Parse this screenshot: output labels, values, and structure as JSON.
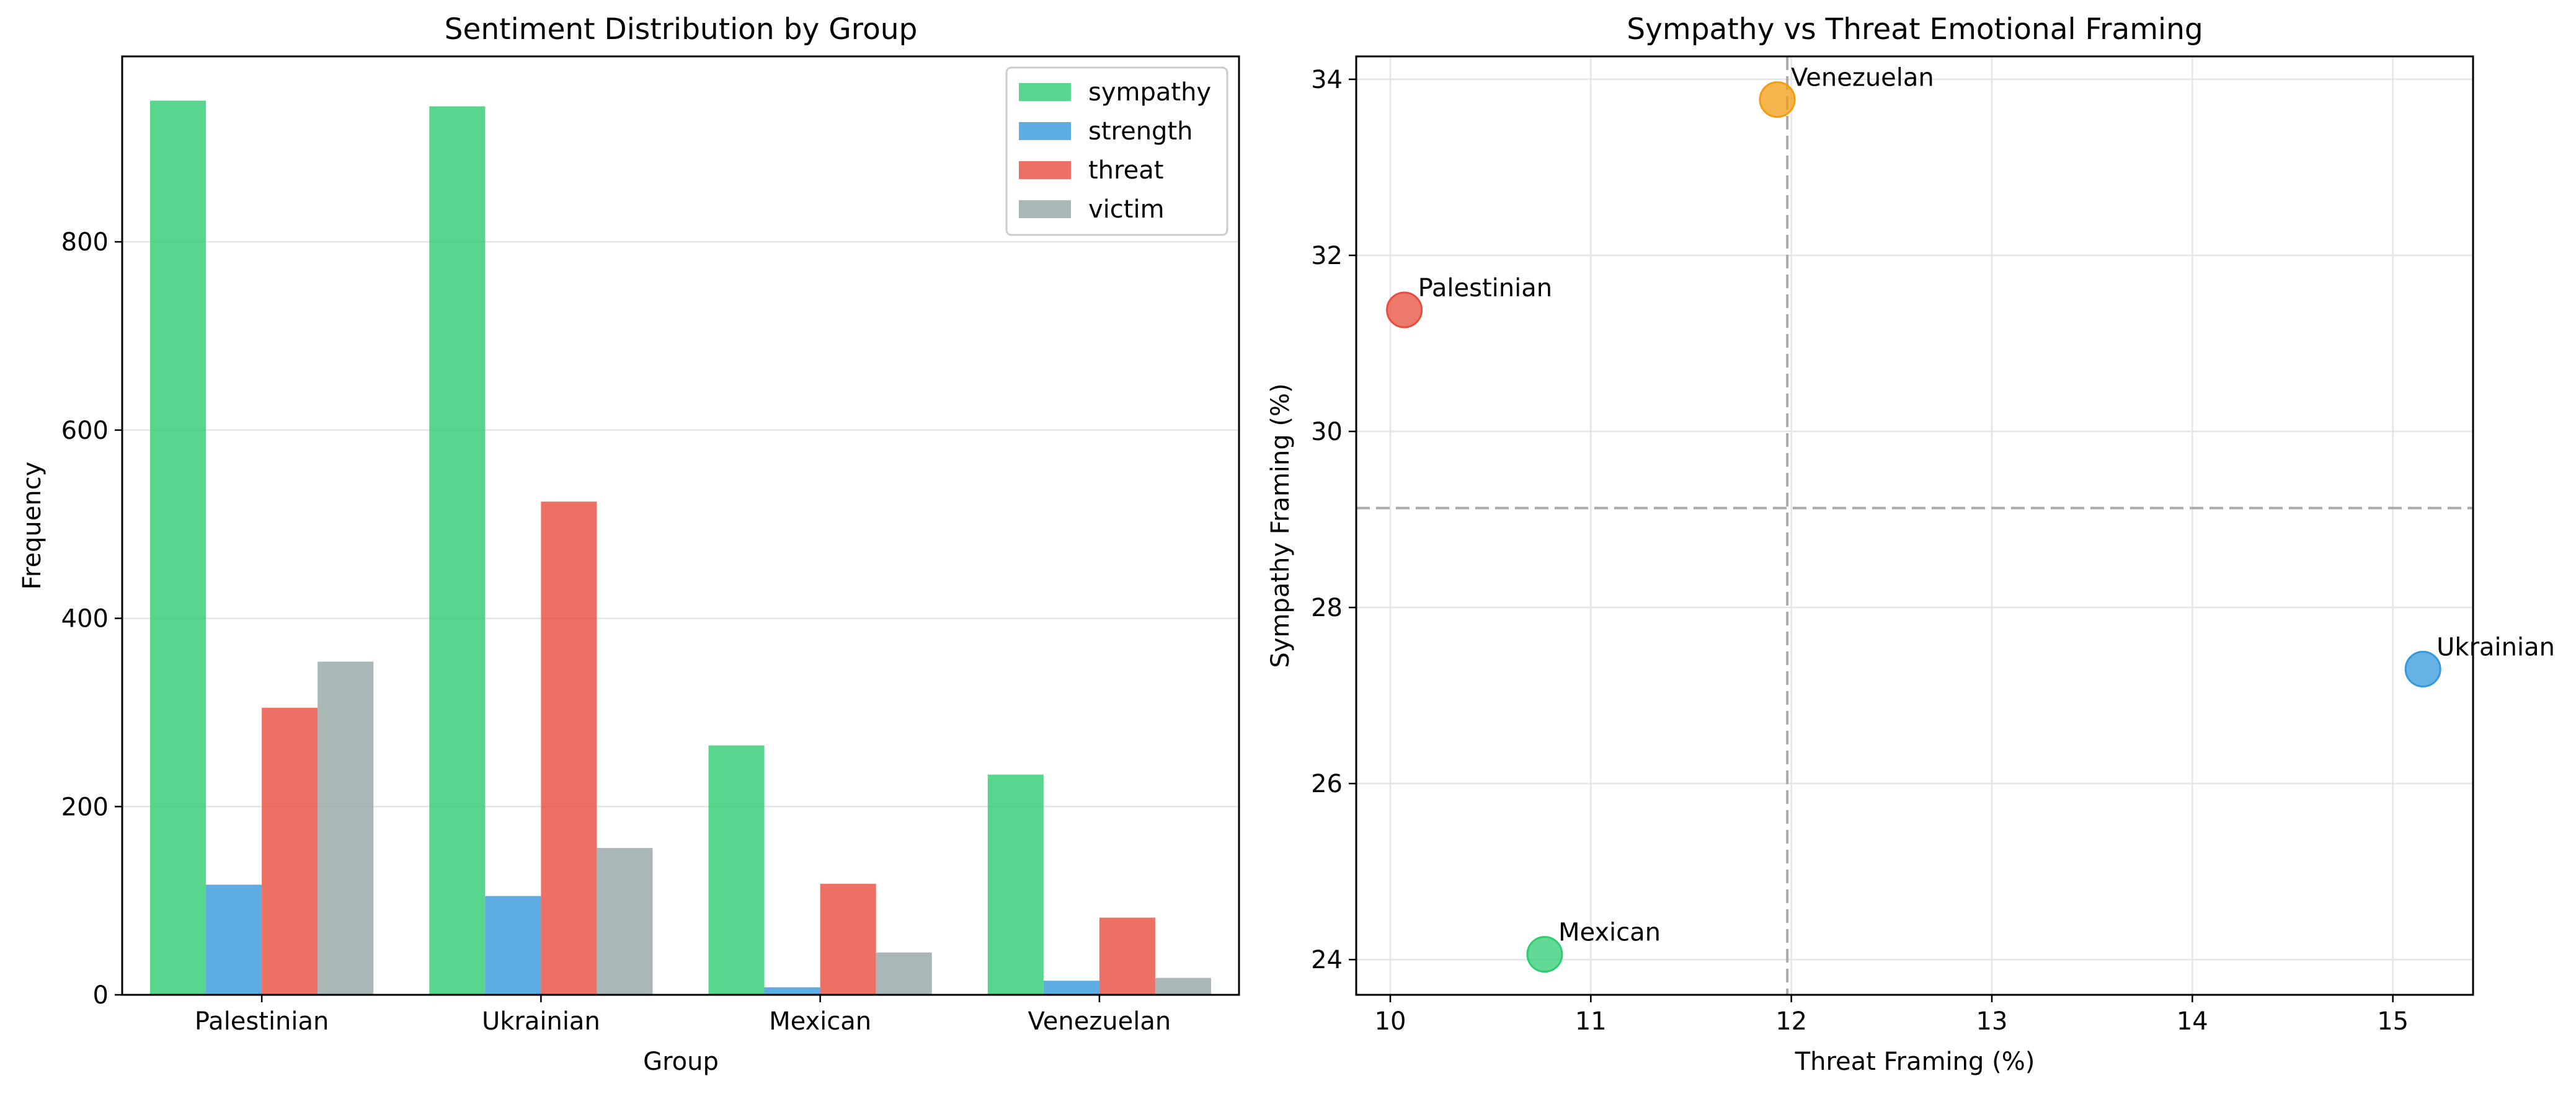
{
  "chart_data": [
    {
      "type": "bar",
      "title": "Sentiment Distribution by Group",
      "xlabel": "Group",
      "ylabel": "Frequency",
      "categories": [
        "Palestinian",
        "Ukrainian",
        "Mexican",
        "Venezuelan"
      ],
      "series": [
        {
          "name": "sympathy",
          "color": "#2ecc71",
          "values": [
            950,
            944,
            265,
            234
          ]
        },
        {
          "name": "strength",
          "color": "#3498db",
          "values": [
            117,
            105,
            8,
            15
          ]
        },
        {
          "name": "threat",
          "color": "#e74c3c",
          "values": [
            305,
            524,
            118,
            82
          ]
        },
        {
          "name": "victim",
          "color": "#95a5a6",
          "values": [
            354,
            156,
            45,
            18
          ]
        }
      ],
      "ylim": [
        0,
        997
      ],
      "yticks": [
        0,
        200,
        400,
        600,
        800
      ],
      "grid": "y",
      "legend": "top-right"
    },
    {
      "type": "scatter",
      "title": "Sympathy vs Threat Emotional Framing",
      "xlabel": "Threat Framing (%)",
      "ylabel": "Sympathy Framing (%)",
      "points": [
        {
          "label": "Palestinian",
          "x": 10.07,
          "y": 31.38,
          "color": "#e74c3c"
        },
        {
          "label": "Ukrainian",
          "x": 15.15,
          "y": 27.3,
          "color": "#3498db"
        },
        {
          "label": "Mexican",
          "x": 10.77,
          "y": 24.06,
          "color": "#2ecc71"
        },
        {
          "label": "Venezuelan",
          "x": 11.93,
          "y": 33.77,
          "color": "#f39c12"
        }
      ],
      "xlim": [
        9.83,
        15.4
      ],
      "ylim": [
        23.6,
        34.26
      ],
      "xticks": [
        10,
        11,
        12,
        13,
        14,
        15
      ],
      "yticks": [
        24,
        26,
        28,
        30,
        32,
        34
      ],
      "mean_x": 11.98,
      "mean_y": 29.13,
      "grid": "both"
    }
  ]
}
